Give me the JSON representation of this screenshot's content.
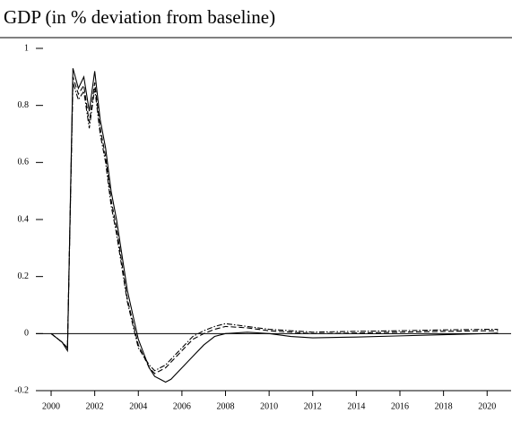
{
  "chart_data": {
    "type": "line",
    "title": "GDP (in % deviation from baseline)",
    "x": [
      2000,
      2000.5,
      2000.75,
      2001,
      2001.25,
      2001.5,
      2001.75,
      2002,
      2002.25,
      2002.5,
      2002.75,
      2003,
      2003.5,
      2004,
      2004.5,
      2004.75,
      2005,
      2005.25,
      2005.5,
      2006,
      2006.5,
      2007,
      2007.5,
      2008,
      2009,
      2010,
      2011,
      2012,
      2014,
      2016,
      2018,
      2020,
      2020.5
    ],
    "series": [
      {
        "color": "#000000",
        "linestyle": "solid",
        "values": [
          0,
          -0.03,
          -0.06,
          0.93,
          0.86,
          0.9,
          0.78,
          0.92,
          0.75,
          0.65,
          0.5,
          0.4,
          0.15,
          -0.02,
          -0.12,
          -0.15,
          -0.16,
          -0.17,
          -0.16,
          -0.12,
          -0.08,
          -0.04,
          -0.01,
          0.0,
          0.005,
          0.0,
          -0.01,
          -0.015,
          -0.012,
          -0.008,
          -0.004,
          0.0,
          0.002
        ]
      },
      {
        "color": "#000000",
        "linestyle": "dashed",
        "values": [
          0,
          -0.03,
          -0.05,
          0.9,
          0.84,
          0.87,
          0.74,
          0.88,
          0.72,
          0.62,
          0.47,
          0.37,
          0.12,
          -0.04,
          -0.12,
          -0.14,
          -0.13,
          -0.12,
          -0.1,
          -0.06,
          -0.02,
          0.0,
          0.015,
          0.025,
          0.02,
          0.01,
          0.005,
          0.0,
          0.002,
          0.005,
          0.008,
          0.01,
          0.01
        ]
      },
      {
        "color": "#000000",
        "linestyle": "dashdot",
        "values": [
          0,
          -0.03,
          -0.05,
          0.88,
          0.82,
          0.85,
          0.72,
          0.86,
          0.7,
          0.6,
          0.45,
          0.35,
          0.11,
          -0.05,
          -0.11,
          -0.13,
          -0.12,
          -0.11,
          -0.09,
          -0.05,
          -0.01,
          0.01,
          0.025,
          0.035,
          0.025,
          0.015,
          0.01,
          0.005,
          0.008,
          0.01,
          0.013,
          0.015,
          0.015
        ]
      }
    ],
    "xlim": [
      1999.3,
      2021.1
    ],
    "xticks": [
      2000,
      2002,
      2004,
      2006,
      2008,
      2010,
      2012,
      2014,
      2016,
      2018,
      2020
    ],
    "ylim": [
      -0.2,
      1
    ],
    "yticks": [
      -0.2,
      0,
      0.2,
      0.4,
      0.6,
      0.8,
      1
    ],
    "zero_line": true
  }
}
